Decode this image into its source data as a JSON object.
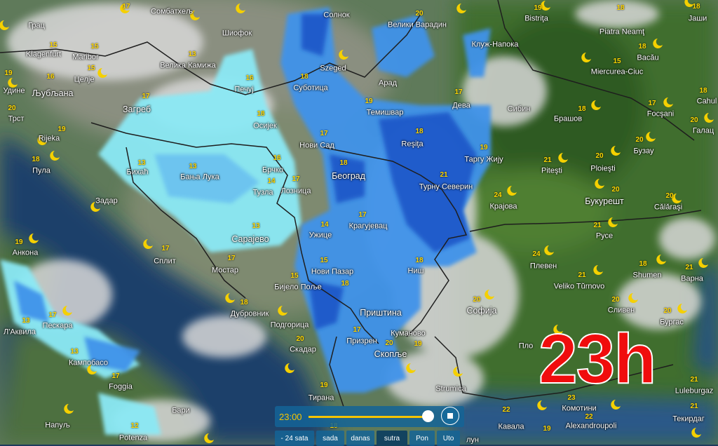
{
  "overlay": {
    "time_big": "23h"
  },
  "player": {
    "time": "23:00",
    "progress": 1.0,
    "stop_icon": "stop-icon",
    "buttons": [
      {
        "label": "- 24 sata",
        "active": false
      },
      {
        "label": "sada",
        "active": false
      },
      {
        "label": "danas",
        "active": false
      },
      {
        "label": "sutra",
        "active": true
      },
      {
        "label": "Pon",
        "active": false
      },
      {
        "label": "Uto",
        "active": false
      }
    ]
  },
  "icons": {
    "night": "moon-icon"
  },
  "colors": {
    "light_rain": "#8be9f5",
    "rain": "#3a8ee8",
    "heavy_rain": "#1a52c8",
    "temp": "#ffd600",
    "time_big": "#f00d0d"
  },
  "cities": [
    {
      "name": "Сомбатхељ"
    },
    {
      "name": "Грац"
    },
    {
      "name": "Klagenfurt"
    },
    {
      "name": "Maribor"
    },
    {
      "name": "Велика Камижа"
    },
    {
      "name": "Шиофок"
    },
    {
      "name": "Солнок"
    },
    {
      "name": "Велики Варадин"
    },
    {
      "name": "Клуж-Напока"
    },
    {
      "name": "Bistriţa"
    },
    {
      "name": "Piatra Neamţ"
    },
    {
      "name": "Јаши"
    },
    {
      "name": "Удине"
    },
    {
      "name": "Љубљана"
    },
    {
      "name": "Целје"
    },
    {
      "name": "Загреб"
    },
    {
      "name": "Печуј"
    },
    {
      "name": "Szeged"
    },
    {
      "name": "Суботица"
    },
    {
      "name": "Арад"
    },
    {
      "name": "Темишвар"
    },
    {
      "name": "Дева"
    },
    {
      "name": "Сибин"
    },
    {
      "name": "Miercurea-Ciuc"
    },
    {
      "name": "Bacău"
    },
    {
      "name": "Cahul"
    },
    {
      "name": "Focşani"
    },
    {
      "name": "Брашов"
    },
    {
      "name": "Галац"
    },
    {
      "name": "Трст"
    },
    {
      "name": "Rijeka"
    },
    {
      "name": "Осијек"
    },
    {
      "name": "Нови Сад"
    },
    {
      "name": "Reşiţa"
    },
    {
      "name": "Таргу Жију"
    },
    {
      "name": "Piteşti"
    },
    {
      "name": "Ploieşti"
    },
    {
      "name": "Бузау"
    },
    {
      "name": "Пула"
    },
    {
      "name": "Бихаћ"
    },
    {
      "name": "Бања Лука"
    },
    {
      "name": "Брчко"
    },
    {
      "name": "Београд"
    },
    {
      "name": "Турну Северин"
    },
    {
      "name": "Тузла"
    },
    {
      "name": "Лозница"
    },
    {
      "name": "Крајова"
    },
    {
      "name": "Букурешт"
    },
    {
      "name": "Călăraşi"
    },
    {
      "name": "Задар"
    },
    {
      "name": "Крагујевац"
    },
    {
      "name": "Ужице"
    },
    {
      "name": "Сарајево"
    },
    {
      "name": "Русе"
    },
    {
      "name": "Анкона"
    },
    {
      "name": "Сплит"
    },
    {
      "name": "Мостар"
    },
    {
      "name": "Нови Пазар"
    },
    {
      "name": "Ниш"
    },
    {
      "name": "Плевен"
    },
    {
      "name": "Shumen"
    },
    {
      "name": "Варна"
    },
    {
      "name": "Бијело Поље"
    },
    {
      "name": "Veliko Tŭrnovo"
    },
    {
      "name": "Софија"
    },
    {
      "name": "Сливен"
    },
    {
      "name": "Бургас"
    },
    {
      "name": "Приштина"
    },
    {
      "name": "Дубровник"
    },
    {
      "name": "Подгорица"
    },
    {
      "name": "Пескара"
    },
    {
      "name": "Л'Аквила"
    },
    {
      "name": "Призрен"
    },
    {
      "name": "Куманово"
    },
    {
      "name": "Скадар"
    },
    {
      "name": "Скопље"
    },
    {
      "name": "Кампобасо"
    },
    {
      "name": "Foggia"
    },
    {
      "name": "Strumica"
    },
    {
      "name": "Тирана"
    },
    {
      "name": "Напуљ"
    },
    {
      "name": "Бари"
    },
    {
      "name": "Potenza"
    },
    {
      "name": "Кавала"
    },
    {
      "name": "Комотини"
    },
    {
      "name": "Alexandroupoli"
    },
    {
      "name": "Luleburgaz"
    },
    {
      "name": "Текирдаг"
    },
    {
      "name": "Пло"
    },
    {
      "name": "лун"
    }
  ],
  "temperatures": [
    "17",
    "15",
    "15",
    "13",
    "20",
    "19",
    "18",
    "18",
    "19",
    "16",
    "15",
    "17",
    "16",
    "18",
    "19",
    "17",
    "15",
    "18",
    "18",
    "17",
    "18",
    "20",
    "20",
    "19",
    "18",
    "17",
    "18",
    "19",
    "21",
    "20",
    "20",
    "18",
    "13",
    "13",
    "16",
    "18",
    "21",
    "14",
    "17",
    "24",
    "20",
    "20",
    "17",
    "14",
    "13",
    "21",
    "19",
    "17",
    "17",
    "15",
    "18",
    "24",
    "18",
    "21",
    "15",
    "21",
    "20",
    "20",
    "20",
    "18",
    "17",
    "13",
    "17",
    "20",
    "20",
    "19",
    "13",
    "17",
    "19",
    "12",
    "22",
    "23",
    "22",
    "21",
    "21",
    "18",
    "18",
    "19"
  ]
}
